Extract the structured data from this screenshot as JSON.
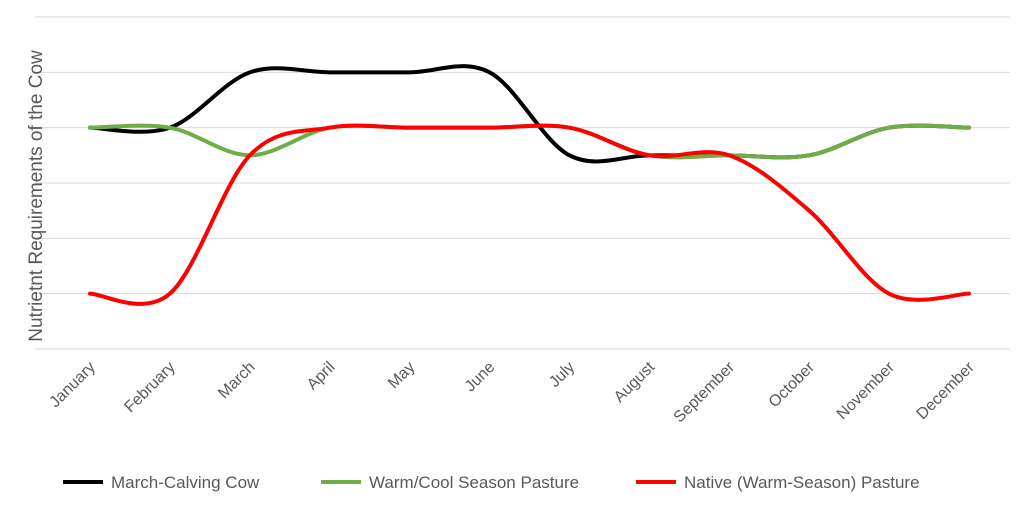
{
  "chart_data": {
    "type": "line",
    "title": "",
    "xlabel": "",
    "ylabel": "Nutrietnt Requirements of the Cow",
    "ylim": [
      0,
      6
    ],
    "y_ticks_shown": false,
    "grid": true,
    "legend_position": "bottom",
    "categories": [
      "January",
      "February",
      "March",
      "April",
      "May",
      "June",
      "July",
      "August",
      "September",
      "October",
      "November",
      "December"
    ],
    "series": [
      {
        "name": "March-Calving Cow",
        "color": "#000000",
        "values": [
          4,
          4,
          5,
          5,
          5,
          5,
          3.5,
          3.5,
          3.5,
          3.5,
          4,
          4
        ]
      },
      {
        "name": "Warm/Cool Season Pasture",
        "color": "#70AD47",
        "values": [
          4,
          4,
          3.5,
          4,
          4,
          4,
          4,
          3.5,
          3.5,
          3.5,
          4,
          4
        ]
      },
      {
        "name": "Native (Warm-Season) Pasture",
        "color": "#FF0000",
        "values": [
          1,
          1,
          3.5,
          4,
          4,
          4,
          4,
          3.5,
          3.5,
          2.5,
          1,
          1
        ]
      }
    ]
  }
}
